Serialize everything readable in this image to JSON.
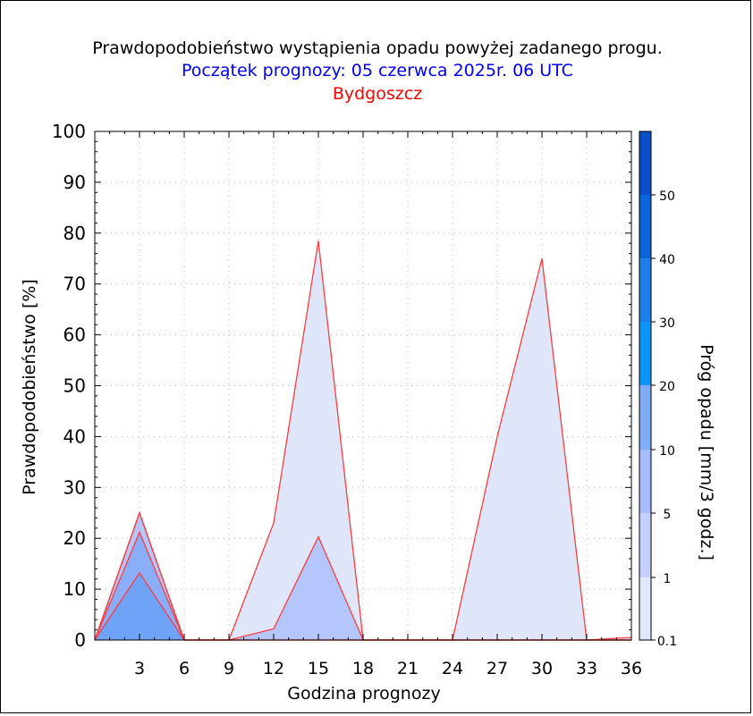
{
  "chart_data": {
    "type": "area",
    "title": "Prawdopodobieństwo wystąpienia opadu powyżej zadanego progu.",
    "subtitle": "Początek prognozy: 05 czerwca 2025r. 06 UTC",
    "location": "Bydgoszcz",
    "xlabel": "Godzina prognozy",
    "ylabel": "Prawdopodobieństwo [%]",
    "colorbar_label": "Próg opadu [mm/3 godz.]",
    "xlim": [
      0,
      36
    ],
    "ylim": [
      0,
      100
    ],
    "x_ticks": [
      "3",
      "6",
      "9",
      "12",
      "15",
      "18",
      "21",
      "24",
      "27",
      "30",
      "33",
      "36"
    ],
    "y_ticks": [
      "0",
      "10",
      "20",
      "30",
      "40",
      "50",
      "60",
      "70",
      "80",
      "90",
      "100"
    ],
    "grid": true,
    "x": [
      0,
      3,
      6,
      9,
      12,
      15,
      18,
      21,
      24,
      27,
      30,
      33,
      36
    ],
    "series": [
      {
        "name": "0.1",
        "color": "#dfe6fa",
        "values": [
          0,
          25,
          0,
          0,
          23,
          78.5,
          0,
          0,
          0,
          40,
          75,
          0,
          0.5
        ]
      },
      {
        "name": "1",
        "color": "#b4c6fc",
        "values": [
          0,
          25,
          0,
          0,
          2.2,
          20.3,
          0,
          0,
          0,
          0,
          0,
          0,
          0
        ]
      },
      {
        "name": "5",
        "color": "#8aaefa",
        "values": [
          0,
          21.2,
          0,
          0,
          0,
          0,
          0,
          0,
          0,
          0,
          0,
          0,
          0
        ]
      },
      {
        "name": "10",
        "color": "#6fa3f7",
        "values": [
          0,
          13.2,
          0,
          0,
          0,
          0,
          0,
          0,
          0,
          0,
          0,
          0,
          0
        ]
      }
    ],
    "colorbar": {
      "ticks": [
        "0.1",
        "1",
        "5",
        "10",
        "20",
        "30",
        "40",
        "50"
      ],
      "colors": [
        "#e2e8fc",
        "#c4d0fb",
        "#a8bbfa",
        "#80acf8",
        "#0d96f7",
        "#1e7ee8",
        "#0c64d9",
        "#0a4fc8",
        "#0640b0"
      ]
    }
  }
}
